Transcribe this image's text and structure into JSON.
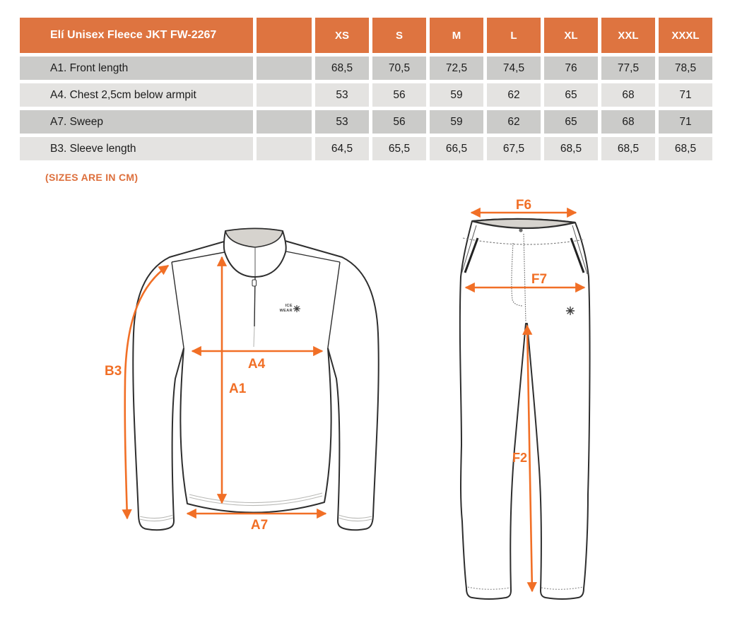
{
  "table": {
    "title": "Elí Unisex Fleece JKT FW-2267",
    "sizes": [
      "XS",
      "S",
      "M",
      "L",
      "XL",
      "XXL",
      "XXXL"
    ],
    "rows": [
      {
        "label": "A1. Front length",
        "values": [
          "68,5",
          "70,5",
          "72,5",
          "74,5",
          "76",
          "77,5",
          "78,5"
        ]
      },
      {
        "label": "A4. Chest 2,5cm below armpit",
        "values": [
          "53",
          "56",
          "59",
          "62",
          "65",
          "68",
          "71"
        ]
      },
      {
        "label": "A7. Sweep",
        "values": [
          "53",
          "56",
          "59",
          "62",
          "65",
          "68",
          "71"
        ]
      },
      {
        "label": "B3. Sleeve length",
        "values": [
          "64,5",
          "65,5",
          "66,5",
          "67,5",
          "68,5",
          "68,5",
          "68,5"
        ]
      }
    ]
  },
  "note": "(SIZES ARE IN CM)",
  "jacket": {
    "brand_line1": "ICE",
    "brand_line2": "WEAR",
    "labels": {
      "b3": "B3",
      "a1": "A1",
      "a4": "A4",
      "a7": "A7"
    }
  },
  "pants": {
    "labels": {
      "f6": "F6",
      "f7": "F7",
      "f2": "F2"
    }
  },
  "colors": {
    "header_orange": "#DE7440",
    "arrow_orange": "#F16F26",
    "note_orange": "#DD6F3C",
    "row_dark": "#CBCBC9",
    "row_light": "#E4E3E1",
    "collar_gray": "#D6D3CE",
    "outline": "#2E2E2E"
  }
}
